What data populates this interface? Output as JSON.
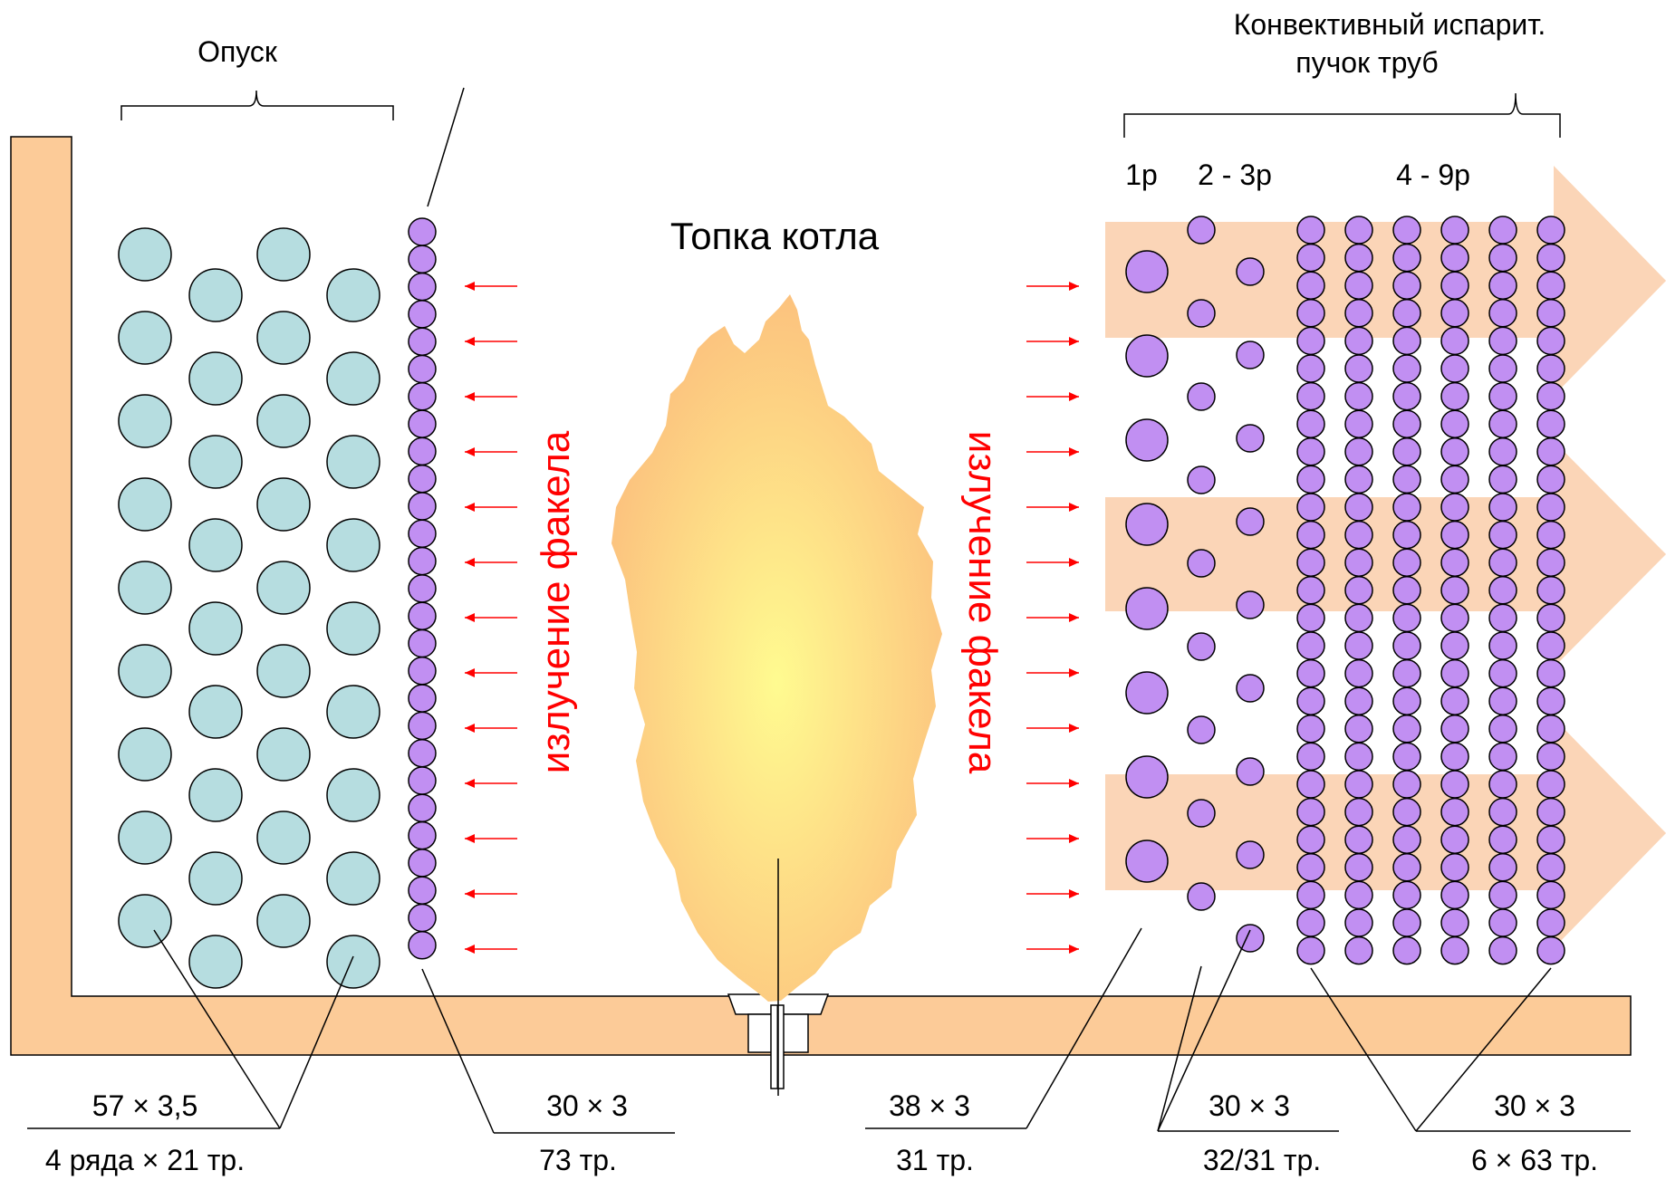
{
  "labels": {
    "downcomer": "Опуск",
    "convective_title_1": "Конвективный испарит.",
    "convective_title_2": "пучок труб",
    "row_1": "1р",
    "row_2_3": "2 - 3р",
    "row_4_9": "4 - 9р",
    "furnace": "Топка котла",
    "flame_radiation_left": "излучение факела",
    "flame_radiation_right": "излучение факела"
  },
  "tube_specs": {
    "downcomer_size": "57 × 3,5",
    "downcomer_count": "4 ряда × 21 тр.",
    "screen_size": "30 × 3",
    "screen_count": "73 тр.",
    "row1_size": "38 × 3",
    "row1_count": "31 тр.",
    "row23_size": "30 × 3",
    "row23_count": "32/31 тр.",
    "row49_size": "30 × 3",
    "row49_count": "6 × 63 тр."
  },
  "colors": {
    "wall": "#fccb98",
    "downcomer_tube": "#b6dde0",
    "screen_tube": "#c18ff2",
    "radiation": "#ff0000",
    "gas_flow": "#fbd5b7",
    "flame_core": "#fffb90",
    "flame_edge": "#fcc27e"
  }
}
